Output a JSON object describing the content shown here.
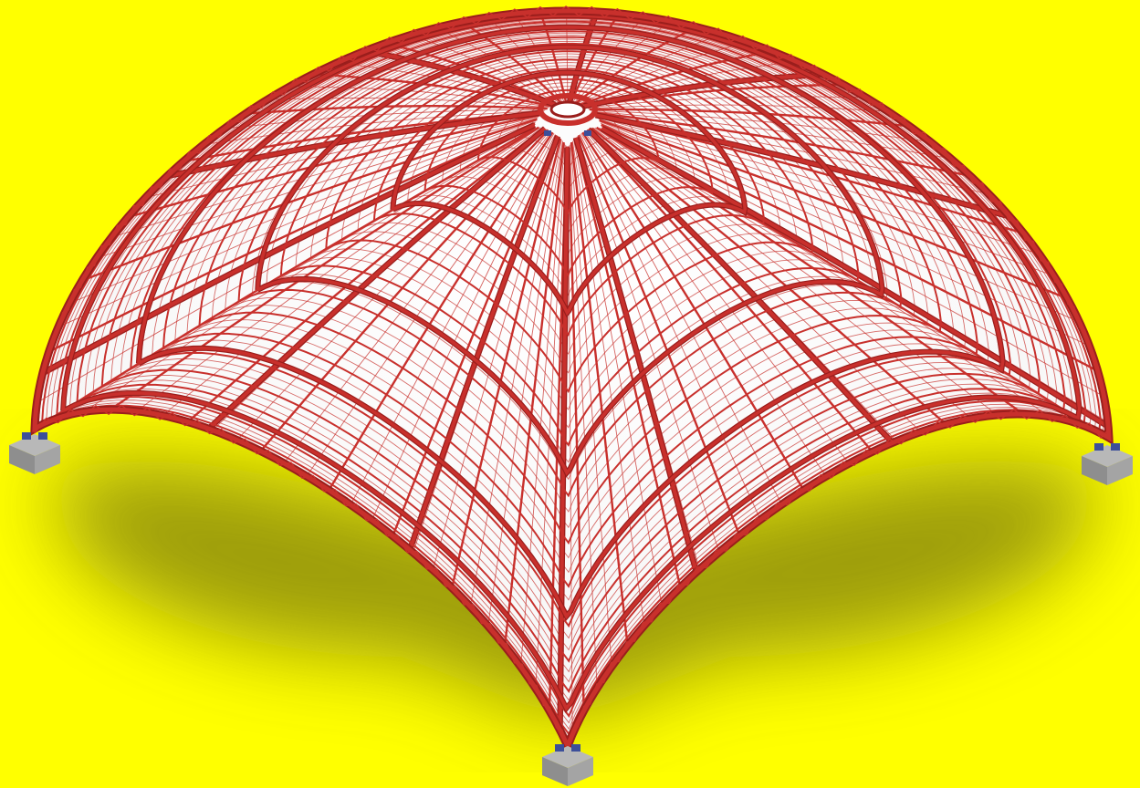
{
  "colors": {
    "background": "#ffff00",
    "shadow": "#8c8c10",
    "frame": "#c8302c",
    "frame_dark": "#9a1e1c",
    "glass": "#ffffff",
    "support": "#b8b8b8",
    "support_dark": "#8e8e8e",
    "bearing": "#3c4f9a"
  },
  "subject": {
    "structure": "steel-lattice-dome",
    "supports": 4,
    "meridian_ribs": 36,
    "main_ribs": 12,
    "rings": 14,
    "main_rings": 4
  }
}
